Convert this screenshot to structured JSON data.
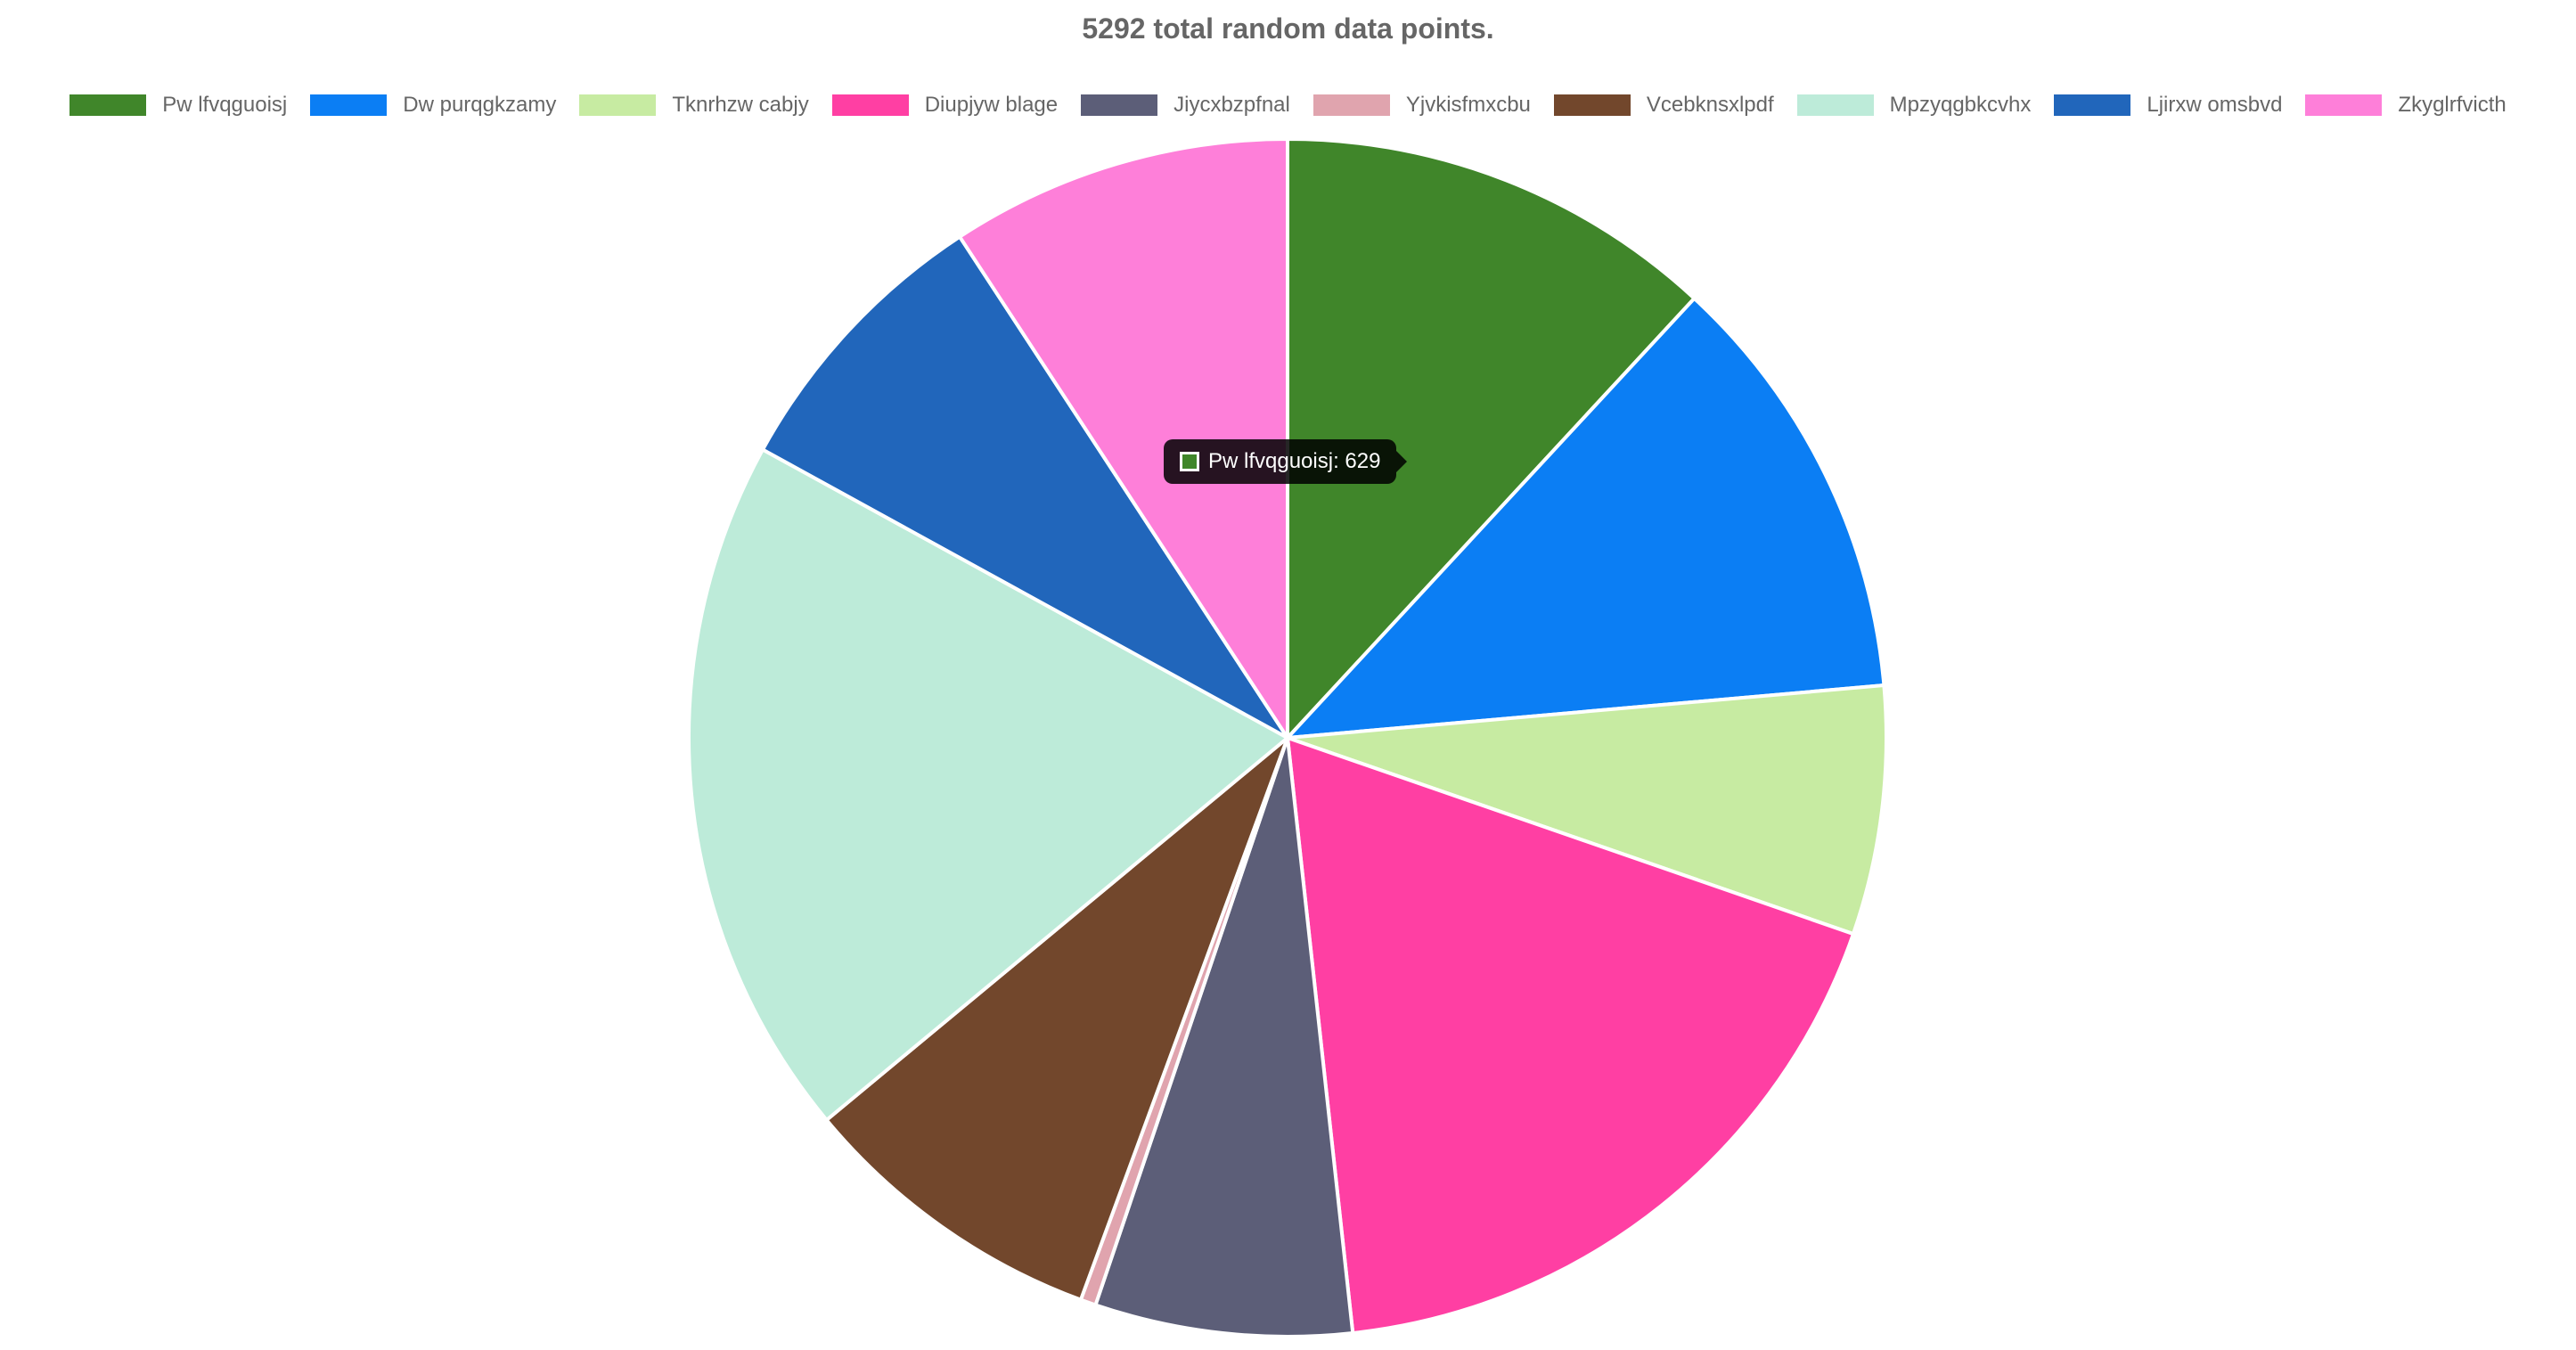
{
  "chart_data": {
    "type": "pie",
    "title": "5292 total random data points.",
    "legend_position": "top",
    "slices": [
      {
        "name": "Pw lfvqguoisj",
        "value": 629,
        "color": "#40862a"
      },
      {
        "name": "Dw purqgkzamy",
        "value": 620,
        "color": "#0b7ef4"
      },
      {
        "name": "Tknrhzw cabjy",
        "value": 355,
        "color": "#c7eba2"
      },
      {
        "name": "Diupjyw blage",
        "value": 950,
        "color": "#ff3fa3"
      },
      {
        "name": "Jiycxbzpfnal",
        "value": 367,
        "color": "#5c5e78"
      },
      {
        "name": "Yjvkisfmxcbu",
        "value": 22,
        "color": "#e0a4ae"
      },
      {
        "name": "Vcebknsxlpdf",
        "value": 443,
        "color": "#72472c"
      },
      {
        "name": "Mpzyqgbkcvhx",
        "value": 1006,
        "color": "#bdebd9"
      },
      {
        "name": "Ljirxw omsbvd",
        "value": 412,
        "color": "#2166bb"
      },
      {
        "name": "Zkyglrfvicth",
        "value": 488,
        "color": "#fe7fd9"
      }
    ]
  },
  "tooltip": {
    "text": "Pw lfvqguoisj: 629",
    "color": "#40862a"
  }
}
